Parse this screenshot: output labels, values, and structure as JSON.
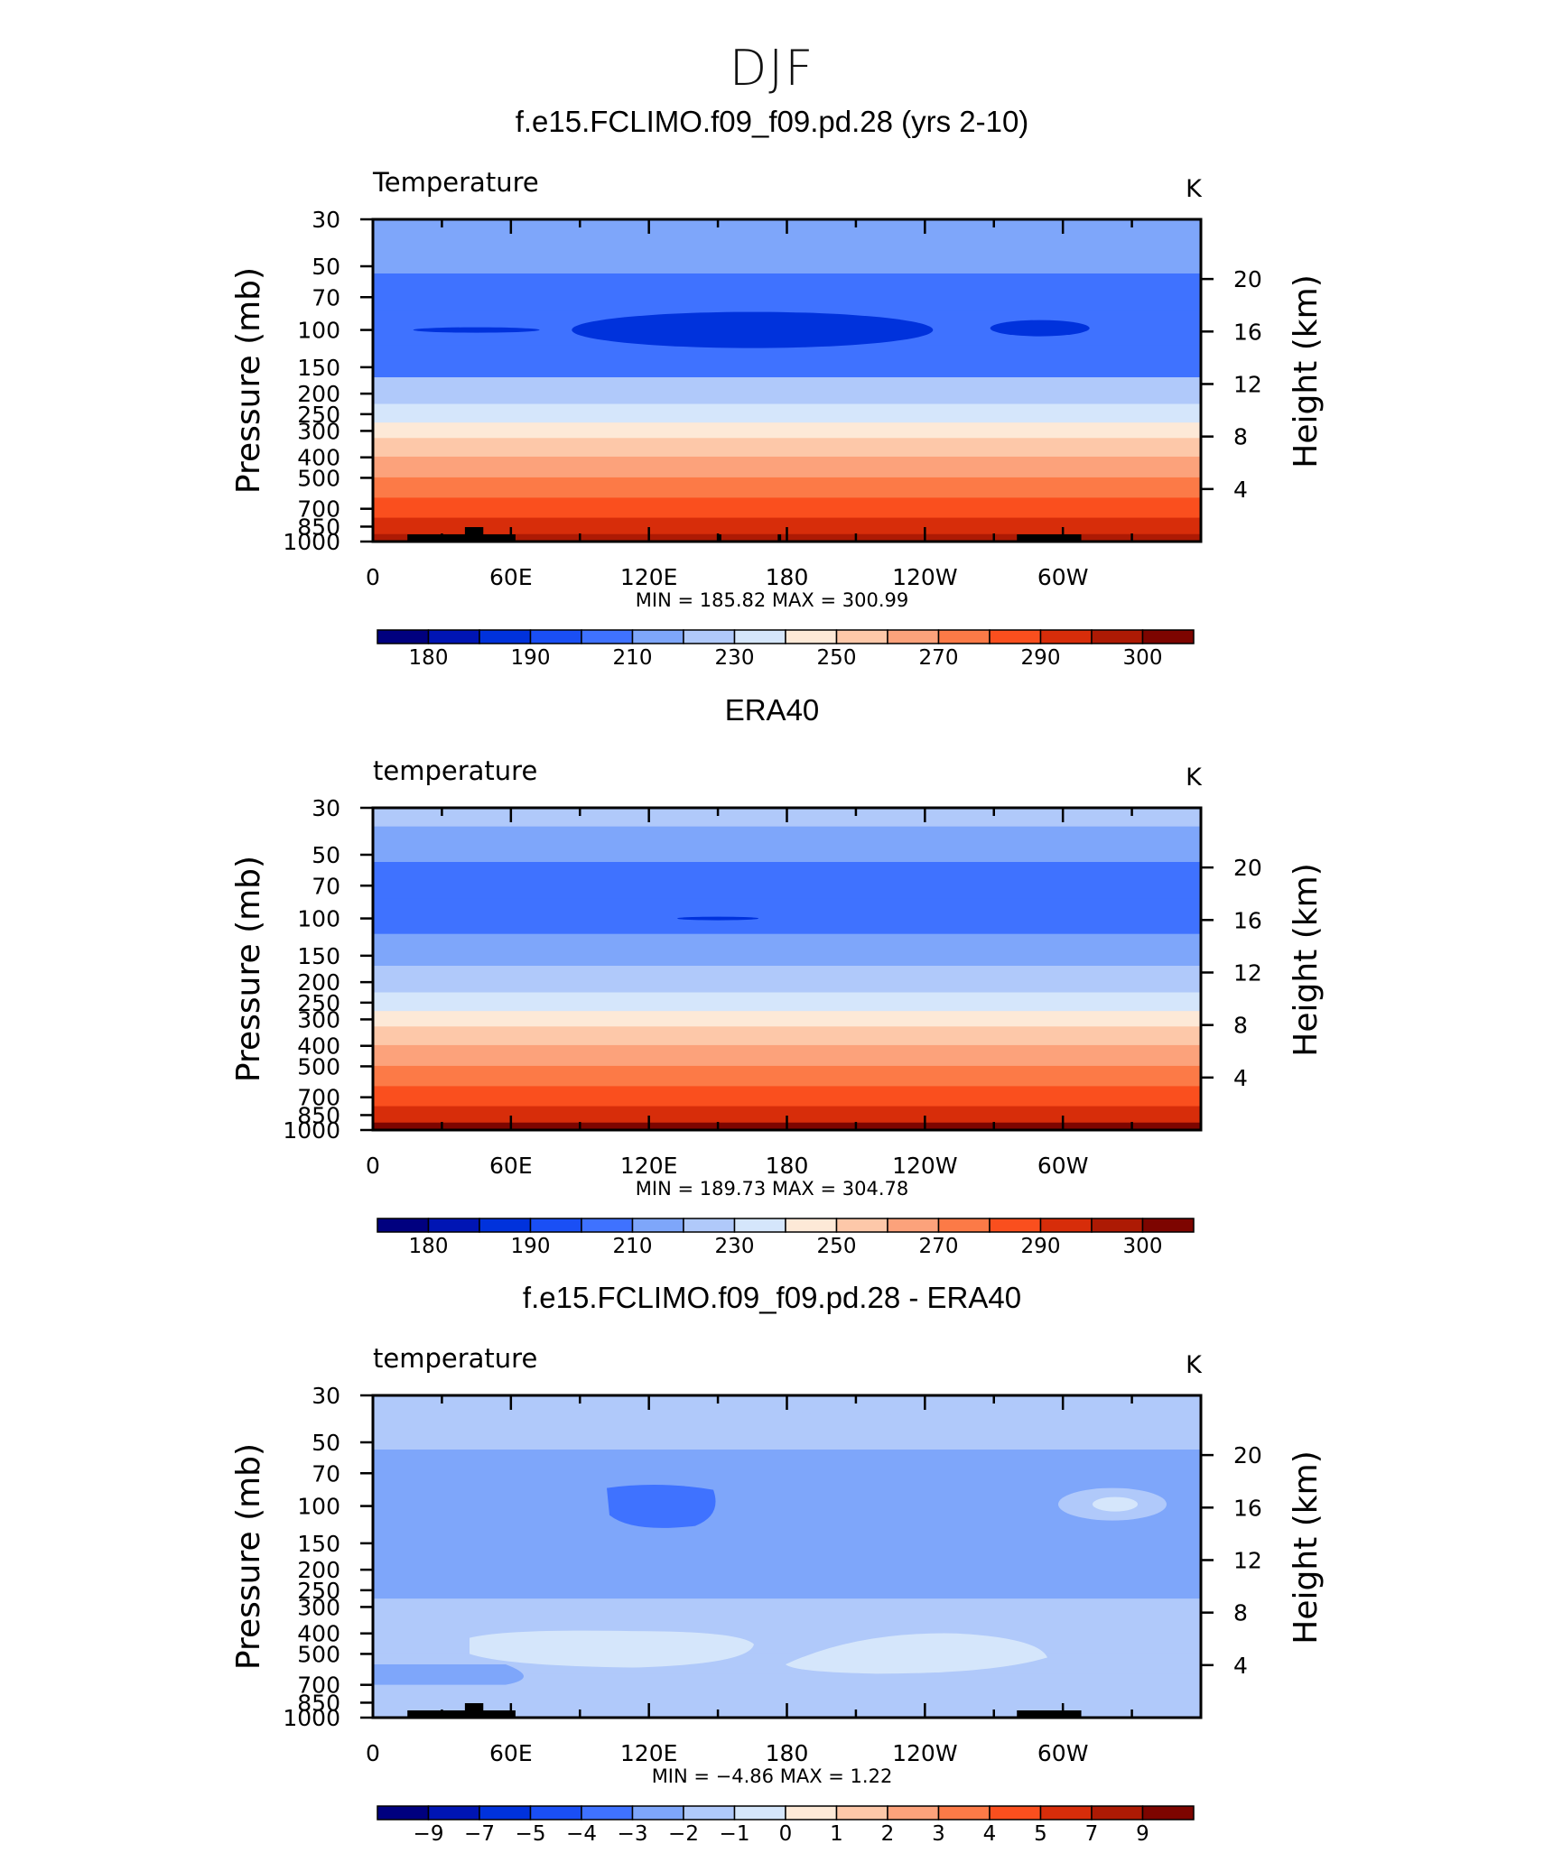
{
  "title": "DJF",
  "chart_data": [
    {
      "type": "heatmap",
      "title": "f.e15.FCLIMO.f09_f09.pd.28 (yrs 2-10)",
      "left_string": "Temperature",
      "right_string": "K",
      "ylabel": "Pressure (mb)",
      "ylabel_right": "Height (km)",
      "x_ticks": [
        "0",
        "60E",
        "120E",
        "180",
        "120W",
        "60W"
      ],
      "y_ticks": [
        "30",
        "50",
        "70",
        "100",
        "150",
        "200",
        "250",
        "300",
        "400",
        "500",
        "700",
        "850",
        "1000"
      ],
      "y2_ticks": [
        "20",
        "16",
        "12",
        "8",
        "4"
      ],
      "stats": {
        "min_label": "MIN",
        "min": "185.82",
        "max_label": "MAX",
        "max": "300.99"
      },
      "colorbar_labels": [
        "180",
        "190",
        "210",
        "230",
        "250",
        "270",
        "290",
        "300"
      ],
      "contour_levels": [
        175,
        180,
        185,
        190,
        200,
        210,
        220,
        230,
        240,
        250,
        260,
        270,
        280,
        290,
        295,
        300
      ],
      "pressure_band_values": [
        {
          "p": 30,
          "value": 208
        },
        {
          "p": 45,
          "value": 203
        },
        {
          "p": 65,
          "value": 197
        },
        {
          "p": 100,
          "value": 193
        },
        {
          "p": 140,
          "value": 198
        },
        {
          "p": 200,
          "value": 212
        },
        {
          "p": 250,
          "value": 223
        },
        {
          "p": 300,
          "value": 234
        },
        {
          "p": 350,
          "value": 245
        },
        {
          "p": 450,
          "value": 257
        },
        {
          "p": 550,
          "value": 267
        },
        {
          "p": 700,
          "value": 277
        },
        {
          "p": 850,
          "value": 286
        },
        {
          "p": 1000,
          "value": 292
        }
      ],
      "features": [
        "tropical tropopause minimum near 100 mb below 190 K",
        "topography near 30E and 75W"
      ]
    },
    {
      "type": "heatmap",
      "title": "ERA40",
      "left_string": "temperature",
      "right_string": "K",
      "ylabel": "Pressure (mb)",
      "ylabel_right": "Height (km)",
      "x_ticks": [
        "0",
        "60E",
        "120E",
        "180",
        "120W",
        "60W"
      ],
      "y_ticks": [
        "30",
        "50",
        "70",
        "100",
        "150",
        "200",
        "250",
        "300",
        "400",
        "500",
        "700",
        "850",
        "1000"
      ],
      "y2_ticks": [
        "20",
        "16",
        "12",
        "8",
        "4"
      ],
      "stats": {
        "min_label": "MIN",
        "min": "189.73",
        "max_label": "MAX",
        "max": "304.78"
      },
      "colorbar_labels": [
        "180",
        "190",
        "210",
        "230",
        "250",
        "270",
        "290",
        "300"
      ],
      "contour_levels": [
        175,
        180,
        185,
        190,
        200,
        210,
        220,
        230,
        240,
        250,
        260,
        270,
        280,
        290,
        295,
        300
      ],
      "pressure_band_values": [
        {
          "p": 30,
          "value": 210
        },
        {
          "p": 45,
          "value": 204
        },
        {
          "p": 65,
          "value": 198
        },
        {
          "p": 100,
          "value": 195
        },
        {
          "p": 140,
          "value": 201
        },
        {
          "p": 200,
          "value": 214
        },
        {
          "p": 250,
          "value": 225
        },
        {
          "p": 300,
          "value": 236
        },
        {
          "p": 350,
          "value": 247
        },
        {
          "p": 450,
          "value": 258
        },
        {
          "p": 550,
          "value": 268
        },
        {
          "p": 700,
          "value": 278
        },
        {
          "p": 850,
          "value": 288
        },
        {
          "p": 1000,
          "value": 296
        }
      ]
    },
    {
      "type": "heatmap",
      "title": "f.e15.FCLIMO.f09_f09.pd.28 - ERA40",
      "left_string": "temperature",
      "right_string": "K",
      "ylabel": "Pressure (mb)",
      "ylabel_right": "Height (km)",
      "x_ticks": [
        "0",
        "60E",
        "120E",
        "180",
        "120W",
        "60W"
      ],
      "y_ticks": [
        "30",
        "50",
        "70",
        "100",
        "150",
        "200",
        "250",
        "300",
        "400",
        "500",
        "700",
        "850",
        "1000"
      ],
      "y2_ticks": [
        "20",
        "16",
        "12",
        "8",
        "4"
      ],
      "stats": {
        "min_label": "MIN",
        "min": "−4.86",
        "max_label": "MAX",
        "max": "1.22"
      },
      "colorbar_labels": [
        "−9",
        "−7",
        "−5",
        "−4",
        "−3",
        "−2",
        "−1",
        "0",
        "1",
        "2",
        "3",
        "4",
        "5",
        "7",
        "9"
      ],
      "contour_levels": [
        -10,
        -8,
        -6,
        -4.5,
        -3.5,
        -2.5,
        -1.5,
        -0.5,
        0.5,
        1.5,
        2.5,
        3.5,
        4.5,
        6,
        8,
        10
      ],
      "pressure_band_values": [
        {
          "p": 30,
          "value": -1.8
        },
        {
          "p": 45,
          "value": -2.2
        },
        {
          "p": 65,
          "value": -3.0
        },
        {
          "p": 100,
          "value": -3.4
        },
        {
          "p": 140,
          "value": -3.0
        },
        {
          "p": 200,
          "value": -3.2
        },
        {
          "p": 250,
          "value": -2.6
        },
        {
          "p": 300,
          "value": -2.2
        },
        {
          "p": 350,
          "value": -2.0
        },
        {
          "p": 450,
          "value": -1.6
        },
        {
          "p": 550,
          "value": -1.8
        },
        {
          "p": 700,
          "value": -2.1
        },
        {
          "p": 850,
          "value": -2.3
        },
        {
          "p": 1000,
          "value": -1.9
        }
      ]
    }
  ],
  "colors": {
    "palette": [
      "#00007f",
      "#0015b4",
      "#0032dc",
      "#1a4ff5",
      "#3f72ff",
      "#7ea6fa",
      "#b0c9fa",
      "#d5e6fb",
      "#fde9d7",
      "#fdc8a9",
      "#fca27b",
      "#fc7a47",
      "#fa4f1e",
      "#d72d0a",
      "#ad1a04",
      "#7d0500"
    ],
    "topography": "#000000"
  }
}
